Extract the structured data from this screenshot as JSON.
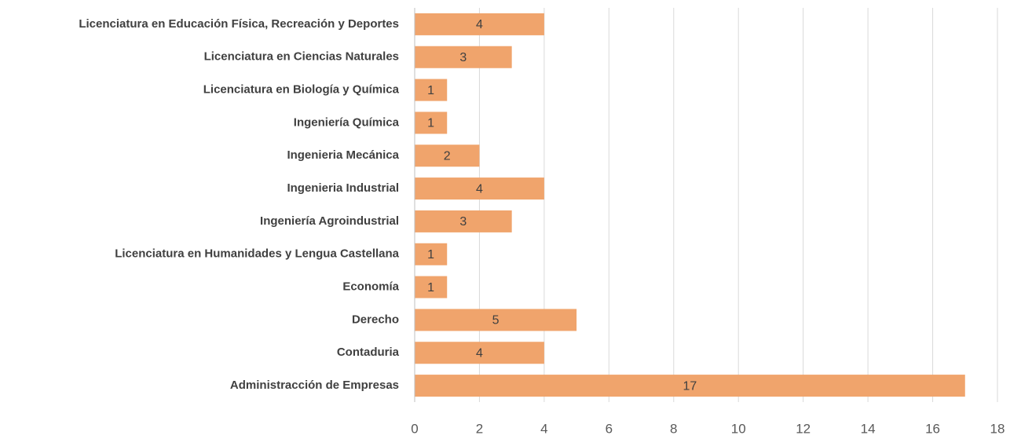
{
  "chart_data": {
    "type": "barh",
    "categories": [
      "Licenciatura en Educación Física, Recreación y Deportes",
      "Licenciatura en Ciencias Naturales",
      "Licenciatura en Biología y Química",
      "Ingeniería Química",
      "Ingenieria Mecánica",
      "Ingenieria Industrial",
      "Ingeniería Agroindustrial",
      "Licenciatura en Humanidades y Lengua Castellana",
      "Economía",
      "Derecho",
      "Contaduria",
      "Administracción de Empresas"
    ],
    "values": [
      4,
      3,
      1,
      1,
      2,
      4,
      3,
      1,
      1,
      5,
      4,
      17
    ],
    "color": "#f0a46c",
    "xlim": [
      0,
      18
    ],
    "xticks": [
      0,
      2,
      4,
      6,
      8,
      10,
      12,
      14,
      16,
      18
    ],
    "grid": true
  }
}
